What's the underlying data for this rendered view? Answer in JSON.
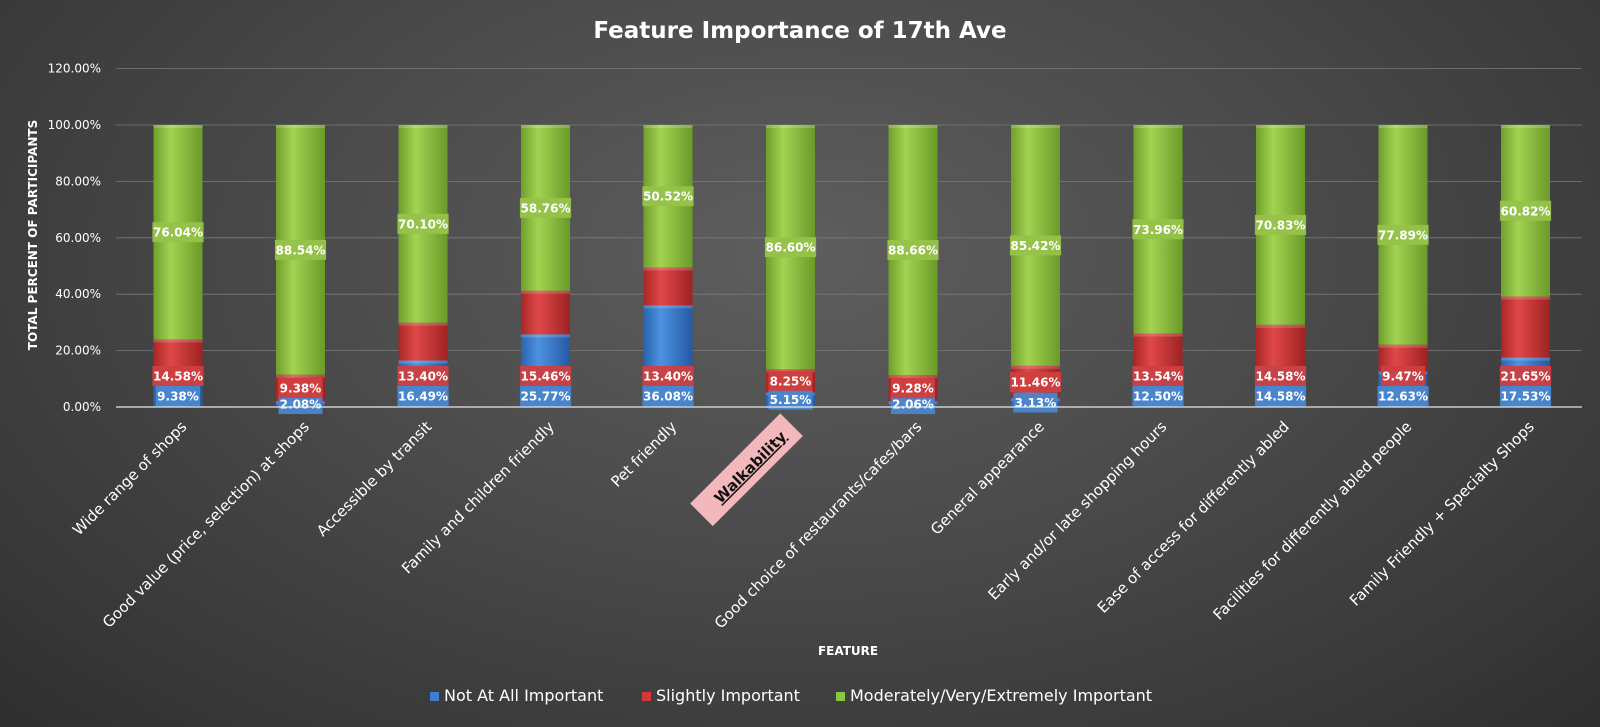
{
  "chart_data": {
    "type": "bar",
    "stacked": true,
    "title": "Feature Importance of 17th Ave",
    "xlabel": "FEATURE",
    "ylabel": "TOTAL PERCENT OF PARTICIPANTS",
    "ylim": [
      0,
      120
    ],
    "yticks": [
      "0.00%",
      "20.00%",
      "40.00%",
      "60.00%",
      "80.00%",
      "100.00%",
      "120.00%"
    ],
    "grid": true,
    "legend_position": "bottom",
    "highlighted_category": "Walkability",
    "categories": [
      "Wide range of shops",
      "Good value (price, selection) at shops",
      "Accessible by transit",
      "Family and children friendly",
      "Pet friendly",
      "Walkability",
      "Good choice of restaurants/cafes/bars",
      "General appearance",
      "Early and/or late shopping hours",
      "Ease of access for differently abled",
      "Facilities for differently abled people",
      "Family Friendly + Specialty Shops"
    ],
    "series": [
      {
        "name": "Not At All Important",
        "color": "#3a7fd0",
        "values": [
          9.38,
          2.08,
          16.49,
          25.77,
          36.08,
          5.15,
          2.06,
          3.13,
          12.5,
          14.58,
          12.63,
          17.53
        ],
        "labels": [
          "9.38%",
          "2.08%",
          "16.49%",
          "25.77%",
          "36.08%",
          "5.15%",
          "2.06%",
          "3.13%",
          "12.50%",
          "14.58%",
          "12.63%",
          "17.53%"
        ]
      },
      {
        "name": "Slightly Important",
        "color": "#d23a3a",
        "values": [
          14.58,
          9.38,
          13.4,
          15.46,
          13.4,
          8.25,
          9.28,
          11.46,
          13.54,
          14.58,
          9.47,
          21.65
        ],
        "labels": [
          "14.58%",
          "9.38%",
          "13.40%",
          "15.46%",
          "13.40%",
          "8.25%",
          "9.28%",
          "11.46%",
          "13.54%",
          "14.58%",
          "9.47%",
          "21.65%"
        ]
      },
      {
        "name": "Moderately/Very/Extremely Important",
        "color": "#8cc63f",
        "values": [
          76.04,
          88.54,
          70.1,
          58.76,
          50.52,
          86.6,
          88.66,
          85.42,
          73.96,
          70.83,
          77.89,
          60.82
        ],
        "labels": [
          "76.04%",
          "88.54%",
          "70.10%",
          "58.76%",
          "50.52%",
          "86.60%",
          "88.66%",
          "85.42%",
          "73.96%",
          "70.83%",
          "77.89%",
          "60.82%"
        ]
      }
    ]
  }
}
